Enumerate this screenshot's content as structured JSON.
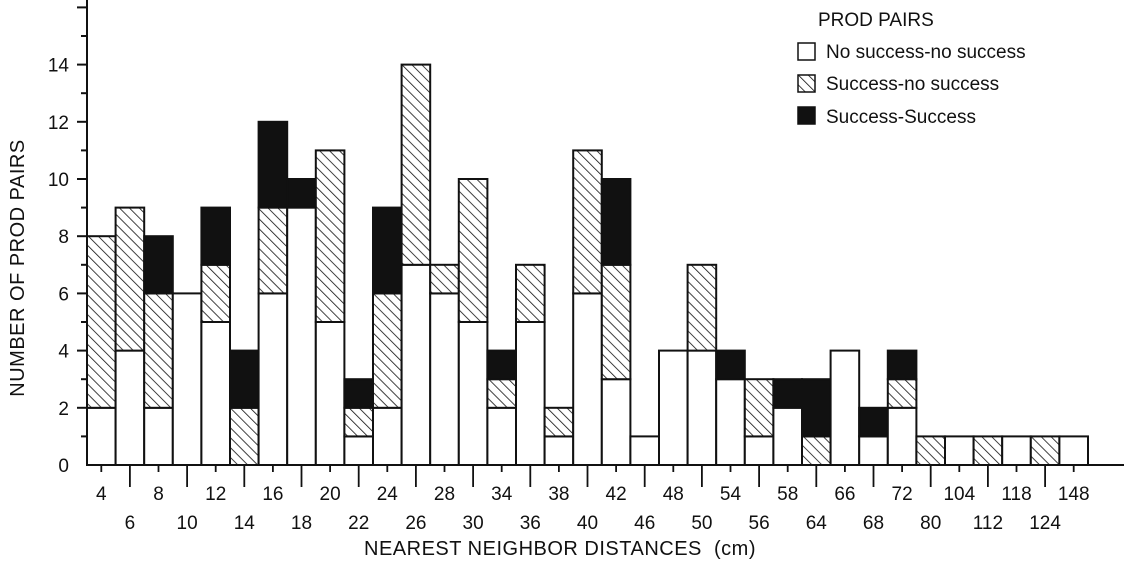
{
  "chart_data": {
    "type": "bar",
    "stacked": true,
    "title": "",
    "xlabel": "NEAREST NEIGHBOR DISTANCES  (cm)",
    "ylabel": "NUMBER OF PROD PAIRS",
    "ylim": [
      0,
      16
    ],
    "yticks": [
      0,
      2,
      4,
      6,
      8,
      10,
      12,
      14
    ],
    "grid": false,
    "legend_title": "PROD PAIRS",
    "legend_position": "top-right",
    "categories": [
      "4",
      "6",
      "8",
      "10",
      "12",
      "14",
      "16",
      "18",
      "20",
      "22",
      "24",
      "26",
      "28",
      "30",
      "34",
      "36",
      "38",
      "40",
      "42",
      "46",
      "48",
      "50",
      "54",
      "56",
      "58",
      "64",
      "66",
      "68",
      "72",
      "80",
      "104",
      "112",
      "118",
      "124",
      "148"
    ],
    "series": [
      {
        "name": "No success-no success",
        "pattern": "white",
        "values": [
          2,
          4,
          2,
          6,
          5,
          0,
          6,
          9,
          5,
          1,
          2,
          7,
          6,
          5,
          2,
          5,
          1,
          6,
          3,
          1,
          4,
          4,
          3,
          1,
          2,
          0,
          4,
          1,
          2,
          0,
          1,
          0,
          1,
          0,
          1
        ]
      },
      {
        "name": "Success-no success",
        "pattern": "hatched",
        "values": [
          6,
          5,
          4,
          0,
          2,
          2,
          3,
          0,
          6,
          1,
          4,
          7,
          1,
          5,
          1,
          2,
          1,
          5,
          4,
          0,
          0,
          3,
          0,
          2,
          0,
          1,
          0,
          0,
          1,
          1,
          0,
          1,
          0,
          1,
          0
        ]
      },
      {
        "name": "Success-Success",
        "pattern": "black",
        "values": [
          0,
          0,
          2,
          0,
          2,
          2,
          3,
          1,
          0,
          1,
          3,
          0,
          0,
          0,
          1,
          0,
          0,
          0,
          3,
          0,
          0,
          0,
          1,
          0,
          1,
          2,
          0,
          1,
          1,
          0,
          0,
          0,
          0,
          0,
          0
        ]
      }
    ]
  }
}
